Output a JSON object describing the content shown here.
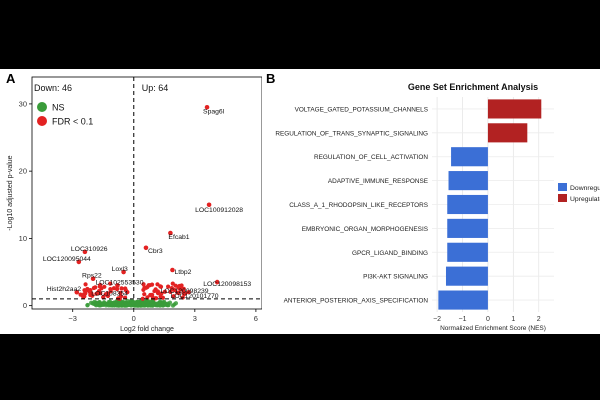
{
  "chart_data": [
    {
      "panel_label": "A",
      "type": "scatter",
      "subtype": "volcano",
      "xlabel": "Log2 fold change",
      "ylabel": "-Log10 adjusted p-value",
      "xlim": [
        -5,
        6.3
      ],
      "ylim": [
        -0.5,
        34
      ],
      "xticks": [
        -3,
        0,
        3,
        6
      ],
      "yticks": [
        0,
        10,
        20,
        30
      ],
      "threshold_y": 1.0,
      "threshold_x": 0,
      "down_label": "Down: 46",
      "up_label": "Up: 64",
      "legend": [
        {
          "name": "NS",
          "color": "#3a9c3a"
        },
        {
          "name": "FDR < 0.1",
          "color": "#e32222"
        }
      ],
      "labeled_points": [
        {
          "label": "Spag6l",
          "x": 3.6,
          "y": 29.5
        },
        {
          "label": "LOC100912028",
          "x": 3.7,
          "y": 15.0
        },
        {
          "label": "Efcab1",
          "x": 1.8,
          "y": 10.8
        },
        {
          "label": "Cbr3",
          "x": 0.6,
          "y": 8.6
        },
        {
          "label": "Ltbp2",
          "x": 1.9,
          "y": 5.3
        },
        {
          "label": "LOC120098153",
          "x": 4.1,
          "y": 3.5
        },
        {
          "label": "LOC120098239",
          "x": 2.3,
          "y": 2.5
        },
        {
          "label": "LOC120101770",
          "x": 2.2,
          "y": 1.9
        },
        {
          "label": "Loxl3",
          "x": -0.5,
          "y": 5.0
        },
        {
          "label": "LOC102553530",
          "x": -0.8,
          "y": 3.0
        },
        {
          "label": "LOC108354",
          "x": -1.3,
          "y": 1.8
        },
        {
          "label": "LOC310926",
          "x": -2.4,
          "y": 8.0
        },
        {
          "label": "LOC120095044",
          "x": -2.7,
          "y": 6.5
        },
        {
          "label": "Rps22",
          "x": -2.0,
          "y": 4.0
        },
        {
          "label": "Hist2h2aa2",
          "x": -2.8,
          "y": 2.0
        }
      ]
    },
    {
      "panel_label": "B",
      "type": "bar",
      "orientation": "horizontal",
      "title": "Gene Set Enrichment Analysis",
      "xlabel": "Normalized Enrichment Score (NES)",
      "ylabel": "",
      "xlim": [
        -2.2,
        2.6
      ],
      "xticks": [
        -2,
        -1,
        0,
        1,
        2
      ],
      "categories": [
        "VOLTAGE_GATED_POTASSIUM_CHANNELS",
        "REGULATION_OF_TRANS_SYNAPTIC_SIGNALING",
        "REGULATION_OF_CELL_ACTIVATION",
        "ADAPTIVE_IMMUNE_RESPONSE",
        "CLASS_A_1_RHODOPSIN_LIKE_RECEPTORS",
        "EMBRYONIC_ORGAN_MORPHOGENESIS",
        "GPCR_LIGAND_BINDING",
        "PI3K-AKT SIGNALING",
        "ANTERIOR_POSTERIOR_AXIS_SPECIFICATION"
      ],
      "values": [
        2.1,
        1.55,
        -1.45,
        -1.55,
        -1.6,
        -1.6,
        -1.6,
        -1.65,
        -1.95
      ],
      "legend": [
        {
          "name": "Downregulated",
          "color": "#3b6fd6"
        },
        {
          "name": "Upregulated",
          "color": "#b22222"
        }
      ]
    }
  ]
}
